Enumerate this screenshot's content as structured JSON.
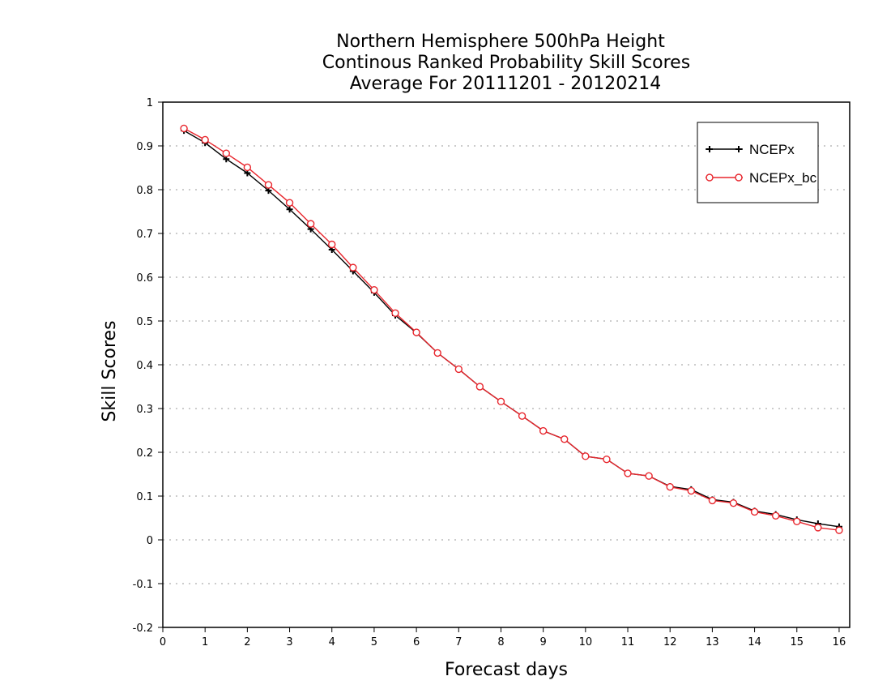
{
  "chart_data": {
    "type": "line",
    "title": [
      "Northern Hemisphere 500hPa Height",
      "Continous Ranked Probability Skill Scores",
      "Average For 20111201 - 20120214"
    ],
    "xlabel": "Forecast days",
    "ylabel": "Skill Scores",
    "xlim": [
      0,
      16.25
    ],
    "ylim": [
      -0.2,
      1
    ],
    "xticks": [
      0,
      1,
      2,
      3,
      4,
      5,
      6,
      7,
      8,
      9,
      10,
      11,
      12,
      13,
      14,
      15,
      16
    ],
    "yticks": [
      -0.2,
      -0.1,
      0,
      0.1,
      0.2,
      0.3,
      0.4,
      0.5,
      0.6,
      0.7,
      0.8,
      0.9,
      1
    ],
    "ytick_labels": [
      "-0.2",
      "-0.1",
      "0",
      "0.1",
      "0.2",
      "0.3",
      "0.4",
      "0.5",
      "0.6",
      "0.7",
      "0.8",
      "0.9",
      "1"
    ],
    "grid": "horizontal dotted",
    "legend_position": "top-right",
    "x": [
      0.5,
      1,
      1.5,
      2,
      2.5,
      3,
      3.5,
      4,
      4.5,
      5,
      5.5,
      6,
      6.5,
      7,
      7.5,
      8,
      8.5,
      9,
      9.5,
      10,
      10.5,
      11,
      11.5,
      12,
      12.5,
      13,
      13.5,
      14,
      14.5,
      15,
      15.5,
      16
    ],
    "series": [
      {
        "name": "NCEPx",
        "color": "#000000",
        "marker": "plus",
        "values": [
          0.935,
          0.907,
          0.87,
          0.838,
          0.798,
          0.755,
          0.71,
          0.663,
          0.614,
          0.565,
          0.513,
          0.473,
          0.427,
          0.39,
          0.35,
          0.316,
          0.283,
          0.249,
          0.23,
          0.191,
          0.184,
          0.152,
          0.146,
          0.122,
          0.115,
          0.092,
          0.086,
          0.066,
          0.058,
          0.046,
          0.037,
          0.03
        ]
      },
      {
        "name": "NCEPx_bc",
        "color": "#e8262d",
        "marker": "circle",
        "values": [
          0.94,
          0.914,
          0.883,
          0.851,
          0.811,
          0.77,
          0.722,
          0.675,
          0.622,
          0.571,
          0.518,
          0.474,
          0.427,
          0.39,
          0.35,
          0.316,
          0.283,
          0.249,
          0.23,
          0.191,
          0.184,
          0.152,
          0.146,
          0.121,
          0.112,
          0.09,
          0.084,
          0.064,
          0.055,
          0.042,
          0.028,
          0.022
        ]
      }
    ]
  }
}
